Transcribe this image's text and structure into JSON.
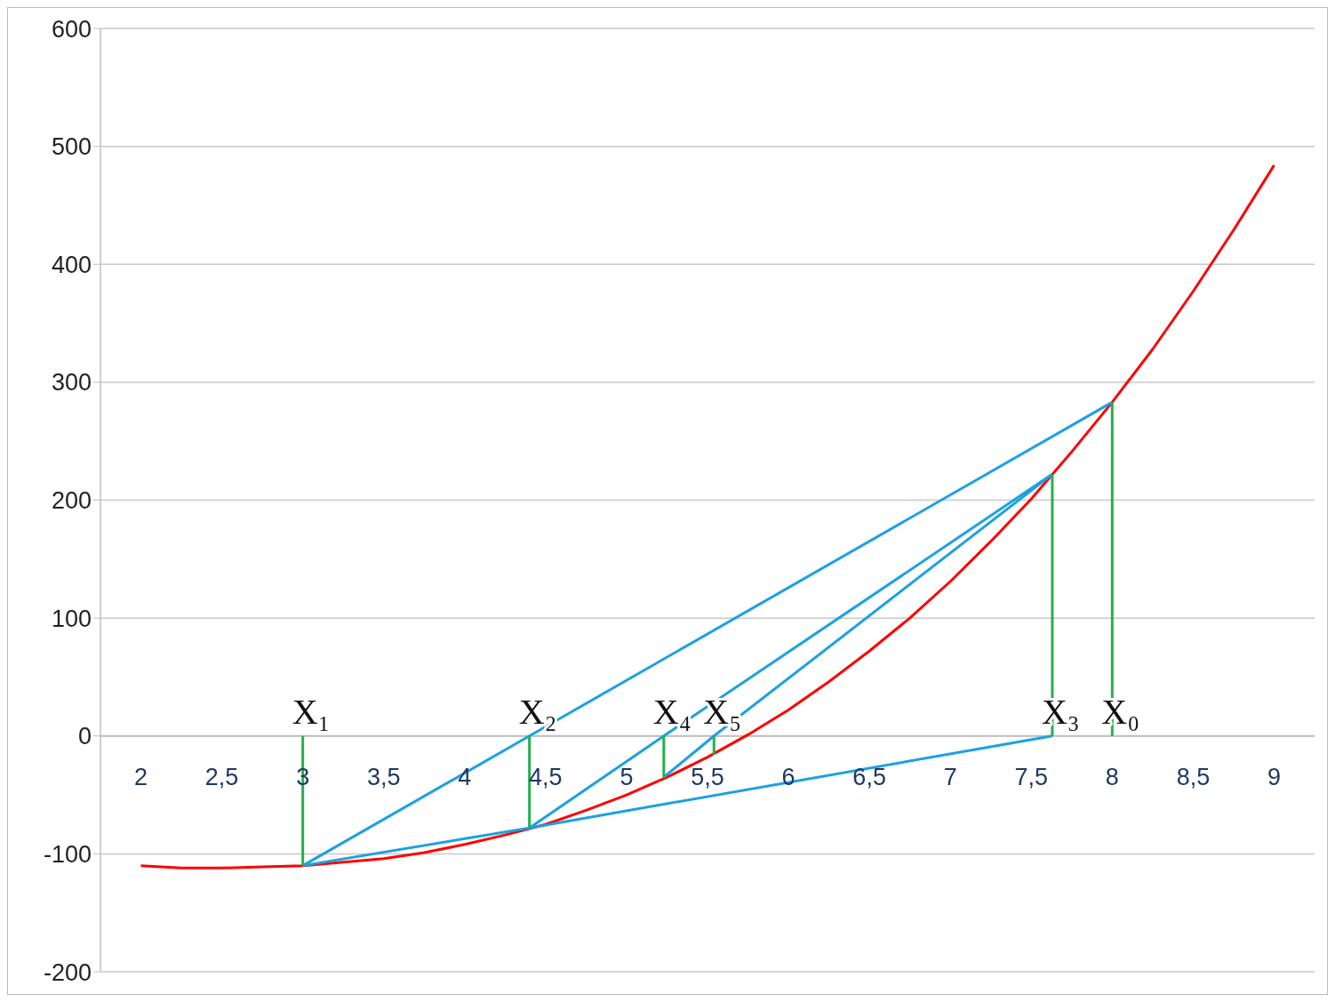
{
  "chart_data": {
    "type": "line",
    "xlim": [
      1.75,
      9.25
    ],
    "ylim": [
      -200,
      600
    ],
    "xticks": [
      2,
      {
        "value": 2.5,
        "label": "2,5"
      },
      3,
      {
        "value": 3.5,
        "label": "3,5"
      },
      4,
      {
        "value": 4.5,
        "label": "4,5"
      },
      5,
      {
        "value": 5.5,
        "label": "5,5"
      },
      6,
      {
        "value": 6.5,
        "label": "6,5"
      },
      7,
      {
        "value": 7.5,
        "label": "7,5"
      },
      8,
      {
        "value": 8.5,
        "label": "8,5"
      },
      9
    ],
    "yticks": [
      -200,
      -100,
      0,
      100,
      200,
      300,
      400,
      500,
      600
    ],
    "grid": "y",
    "series": [
      {
        "color": "#ff0000",
        "x": [
          2,
          2.25,
          2.5,
          2.75,
          3,
          3.25,
          3.5,
          3.75,
          4,
          4.25,
          4.5,
          4.75,
          5,
          5.25,
          5.5,
          5.75,
          6,
          6.25,
          6.5,
          6.75,
          7,
          7.25,
          7.5,
          7.75,
          8,
          8.25,
          8.5,
          8.75,
          9
        ],
        "values": [
          -110,
          -112,
          -112,
          -111,
          -110,
          -107,
          -104,
          -99,
          -92,
          -84,
          -75,
          -63,
          -50,
          -35,
          -18,
          1,
          22,
          46,
          72,
          100,
          131,
          165,
          201,
          241,
          283,
          328,
          377,
          429,
          484
        ]
      },
      {
        "type": "line",
        "color": "#1ba1e2",
        "x": [
          3,
          4.4,
          8
        ],
        "values": [
          -110,
          0,
          283
        ]
      },
      {
        "type": "line",
        "color": "#1ba1e2",
        "x": [
          3,
          4.4,
          7.63
        ],
        "values": [
          -110,
          -78,
          0
        ]
      },
      {
        "type": "line",
        "color": "#1ba1e2",
        "x": [
          4.4,
          5.23,
          7.63
        ],
        "values": [
          -78,
          0,
          222
        ]
      },
      {
        "type": "line",
        "color": "#1ba1e2",
        "x": [
          5.23,
          5.54,
          7.63
        ],
        "values": [
          -35,
          0,
          222
        ]
      },
      {
        "type": "line",
        "color": "#22b14c",
        "x": [
          3,
          3
        ],
        "values": [
          0,
          -110
        ]
      },
      {
        "type": "line",
        "color": "#22b14c",
        "x": [
          4.4,
          4.4
        ],
        "values": [
          0,
          -78
        ]
      },
      {
        "type": "line",
        "color": "#22b14c",
        "x": [
          5.23,
          5.23
        ],
        "values": [
          0,
          -35
        ]
      },
      {
        "type": "line",
        "color": "#22b14c",
        "x": [
          5.54,
          5.54
        ],
        "values": [
          0,
          -16
        ]
      },
      {
        "type": "line",
        "color": "#22b14c",
        "x": [
          7.63,
          7.63
        ],
        "values": [
          0,
          222
        ]
      },
      {
        "type": "line",
        "color": "#22b14c",
        "x": [
          8,
          8
        ],
        "values": [
          0,
          283
        ]
      }
    ],
    "annotations": [
      {
        "text": "X₁",
        "x": 3,
        "y": 0
      },
      {
        "text": "X₂",
        "x": 4.4,
        "y": 0
      },
      {
        "text": "X₄",
        "x": 5.23,
        "y": 0
      },
      {
        "text": "X₅",
        "x": 5.54,
        "y": 0
      },
      {
        "text": "X₃",
        "x": 7.63,
        "y": 0
      },
      {
        "text": "X₀",
        "x": 8,
        "y": 0
      }
    ]
  }
}
